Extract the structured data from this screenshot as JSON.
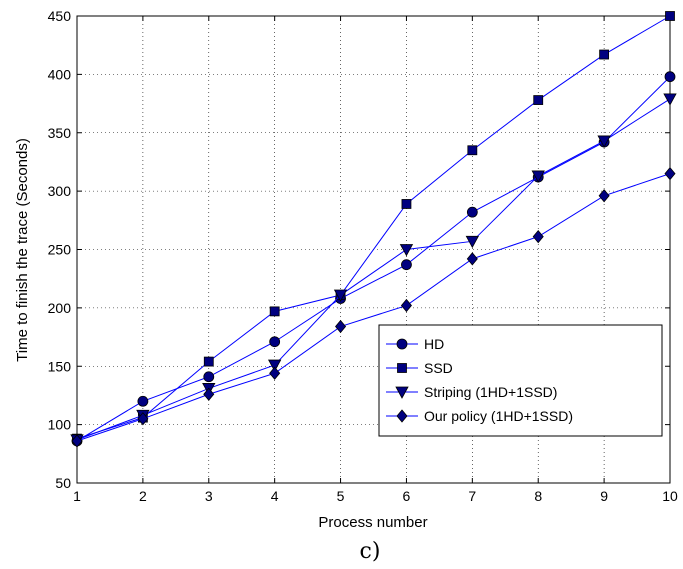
{
  "chart_data": {
    "type": "line",
    "caption": "c)",
    "xlabel": "Process number",
    "ylabel": "Time to finish the trace (Seconds)",
    "x": [
      1,
      2,
      3,
      4,
      5,
      6,
      7,
      8,
      9,
      10
    ],
    "xlim": [
      1,
      10
    ],
    "ylim": [
      50,
      450
    ],
    "xticks": [
      1,
      2,
      3,
      4,
      5,
      6,
      7,
      8,
      9,
      10
    ],
    "yticks": [
      50,
      100,
      150,
      200,
      250,
      300,
      350,
      400,
      450
    ],
    "grid": true,
    "legend_position": "bottom-right",
    "line_color": "#0000ff",
    "marker_color": "#000080",
    "series": [
      {
        "name": "HD",
        "marker": "circle",
        "values": [
          86,
          120,
          141,
          171,
          208,
          237,
          282,
          312,
          342,
          398
        ]
      },
      {
        "name": "SSD",
        "marker": "square",
        "values": [
          88,
          106,
          154,
          197,
          211,
          289,
          335,
          378,
          417,
          450
        ]
      },
      {
        "name": "Striping (1HD+1SSD)",
        "marker": "triangle-down",
        "values": [
          87,
          108,
          131,
          151,
          211,
          250,
          257,
          313,
          343,
          379
        ]
      },
      {
        "name": "Our policy (1HD+1SSD)",
        "marker": "diamond",
        "values": [
          86,
          105,
          126,
          144,
          184,
          202,
          242,
          261,
          296,
          315
        ]
      }
    ]
  }
}
